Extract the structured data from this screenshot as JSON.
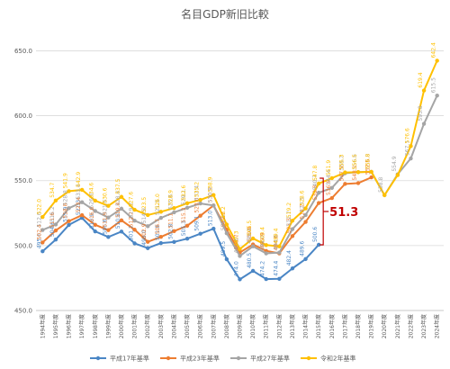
{
  "chart_data": {
    "type": "line",
    "title": "名目GDP新旧比較",
    "xlabel": "",
    "ylabel": "",
    "ylim": [
      450,
      660
    ],
    "yticks": [
      450.0,
      500.0,
      550.0,
      600.0,
      650.0
    ],
    "ytick_labels": [
      "450.0",
      "500.0",
      "550.0",
      "600.0",
      "650.0"
    ],
    "grid": true,
    "legend_position": "bottom",
    "categories": [
      "1994年度",
      "1995年度",
      "1996年度",
      "1997年度",
      "1998年度",
      "1999年度",
      "2000年度",
      "2001年度",
      "2002年度",
      "2003年度",
      "2004年度",
      "2005年度",
      "2006年度",
      "2007年度",
      "2008年度",
      "2009年度",
      "2010年度",
      "2011年度",
      "2012年度",
      "2013年度",
      "2014年度",
      "2015年度",
      "2016年度",
      "2017年度",
      "2018年度",
      "2019年度",
      "2020年度",
      "2021年度",
      "2022年度",
      "2023年度",
      "2024年度"
    ],
    "series": [
      {
        "name": "平成17年基準",
        "color": "#4a86c5",
        "values": [
          495.6,
          504.6,
          515.9,
          521.3,
          510.9,
          506.6,
          510.8,
          501.7,
          498.0,
          501.9,
          502.8,
          505.3,
          509.1,
          513.0,
          489.5,
          474.0,
          480.5,
          474.2,
          474.4,
          482.4,
          489.6,
          500.6,
          null,
          null,
          null,
          null,
          null,
          null,
          null,
          null,
          null
        ]
      },
      {
        "name": "平成23年基準",
        "color": "#ed7d31",
        "values": [
          502.4,
          511.6,
          518.8,
          523.4,
          516.0,
          511.9,
          519.4,
          512.2,
          502.9,
          506.7,
          511.1,
          515.3,
          523.0,
          530.9,
          512.2,
          494.7,
          500.9,
          495.9,
          494.0,
          507.3,
          518.2,
          532.8,
          536.6,
          547.5,
          548.1,
          552.5,
          null,
          null,
          null,
          null,
          null
        ]
      },
      {
        "name": "平成27年基準",
        "color": "#a5a5a5",
        "values": [
          512.0,
          516.2,
          528.8,
          533.4,
          526.6,
          521.6,
          528.4,
          519.2,
          514.9,
          521.3,
          525.6,
          529.1,
          532.4,
          530.9,
          509.5,
          492.0,
          499.4,
          494.0,
          494.6,
          512.7,
          523.5,
          540.7,
          544.4,
          555.7,
          556.6,
          556.8,
          538.8,
          554.9,
          567.1,
          593.8,
          615.5
        ]
      },
      {
        "name": "令和2年基準",
        "color": "#ffc000",
        "values": [
          522.0,
          534.7,
          541.9,
          542.9,
          534.6,
          530.6,
          537.5,
          527.6,
          523.5,
          526.0,
          528.9,
          532.6,
          535.2,
          538.9,
          516.2,
          497.3,
          505.5,
          500.4,
          499.4,
          519.2,
          528.6,
          547.8,
          551.9,
          556.3,
          556.5,
          556.8,
          538.8,
          554.3,
          576.6,
          619.4,
          642.4
        ]
      }
    ],
    "data_labels": {
      "平成17年基準": [
        "495.6",
        "504.6",
        "515.9",
        "521.3",
        "510.9",
        "506.6",
        "510.8",
        "501.7",
        "498.0",
        "501.9",
        "502.8",
        "505.3",
        "509.1",
        "513.0",
        "489.5",
        "474.0",
        "480.5",
        "474.2",
        "474.4",
        "482.4",
        "489.6",
        "500.6",
        "",
        "",
        "",
        "",
        "",
        "",
        "",
        "",
        ""
      ],
      "平成23年基準": [
        "502.4",
        "511.6",
        "518.8",
        "523.4",
        "516.0",
        "511.9",
        "519.4",
        "512.2",
        "502.9",
        "506.7",
        "511.1",
        "515.3",
        "523.0",
        "530.9",
        "512.2",
        "494.7",
        "500.9",
        "495.9",
        "494.0",
        "507.3",
        "518.2",
        "532.8",
        "536.6",
        "547.5",
        "548.1",
        "552.5",
        "",
        "",
        "",
        "",
        ""
      ],
      "平成27年基準": [
        "512.0",
        "516.2",
        "528.8",
        "533.4",
        "526.6",
        "521.6",
        "528.4",
        "519.2",
        "514.9",
        "521.3",
        "525.6",
        "529.1",
        "532.4",
        "530.9",
        "509.5",
        "492.0",
        "499.4",
        "494.0",
        "494.6",
        "512.7",
        "523.5",
        "540.7",
        "544.4",
        "555.7",
        "556.6",
        "556.8",
        "538.8",
        "554.9",
        "567.1",
        "593.8",
        "615.5"
      ],
      "令和2年基準": [
        "522.0",
        "534.7",
        "541.9",
        "542.9",
        "534.6",
        "530.6",
        "537.5",
        "527.6",
        "523.5",
        "526.0",
        "528.9",
        "532.6",
        "535.2",
        "538.9",
        "516.2",
        "497.3",
        "505.5",
        "500.4",
        "499.4",
        "519.2",
        "528.6",
        "547.8",
        "551.9",
        "556.3",
        "556.5",
        "556.8",
        "",
        "",
        "576.6",
        "619.4",
        "642.4"
      ]
    },
    "annotation": {
      "text": "51.3",
      "category_index": 21,
      "from_value": 500.6,
      "to_value": 551.9,
      "color": "#c00000"
    }
  }
}
